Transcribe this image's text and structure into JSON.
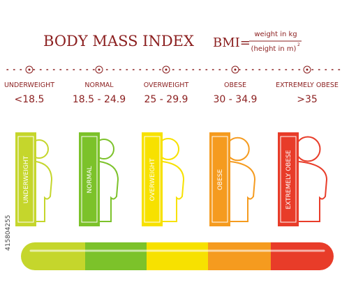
{
  "title": "BODY MASS INDEX",
  "formula": {
    "lhs": "BMI=",
    "numerator": "weight in kg",
    "denominator": "(height in m)",
    "exponent": "2"
  },
  "categories": [
    {
      "label": "UNDERWEIGHT",
      "range": "<18.5",
      "bar_label": "UNDERWEIGHT"
    },
    {
      "label": "NORMAL",
      "range": "18.5 - 24.9",
      "bar_label": "NORMAL"
    },
    {
      "label": "OVERWEIGHT",
      "range": "25 - 29.9",
      "bar_label": "OVERWEIGHT"
    },
    {
      "label": "OBESE",
      "range": "30 - 34.9",
      "bar_label": "OBESE"
    },
    {
      "label": "EXTREMELY OBESE",
      "range": ">35",
      "bar_label": "EXTREMELY OBESE"
    }
  ],
  "watermark": "415804255"
}
